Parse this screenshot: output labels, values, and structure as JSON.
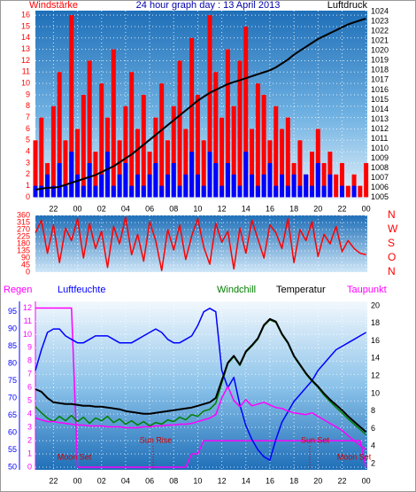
{
  "chart_data": [
    {
      "type": "combo",
      "title": "24 hour graph day : 13 April 2013",
      "y_label": "Windstärke",
      "y2_label": "Luftdruck",
      "grid": true,
      "x": [
        -3.5,
        -3,
        -2.5,
        -2,
        -1.5,
        -1,
        -0.5,
        0,
        0.5,
        1,
        1.5,
        2,
        2.5,
        3,
        3.5,
        4,
        4.5,
        5,
        5.5,
        6,
        6.5,
        7,
        7.5,
        8,
        8.5,
        9,
        9.5,
        10,
        10.5,
        11,
        11.5,
        12,
        12.5,
        13,
        13.5,
        14,
        14.5,
        15,
        15.5,
        16,
        16.5,
        17,
        17.5,
        18,
        18.5,
        19,
        19.5,
        20,
        20.5,
        21,
        21.5,
        22,
        22.5,
        23,
        23.5,
        24
      ],
      "xlim": [
        -3.5,
        24.1
      ],
      "xticks": [
        {
          "value": -2,
          "label": "22"
        },
        {
          "value": 0,
          "label": "00"
        },
        {
          "value": 2,
          "label": "02"
        },
        {
          "value": 4,
          "label": "04"
        },
        {
          "value": 6,
          "label": "06"
        },
        {
          "value": 8,
          "label": "08"
        },
        10,
        12,
        14,
        16,
        18,
        20,
        22,
        {
          "value": 24,
          "label": "00"
        }
      ],
      "ylim": [
        -0.2,
        16.4
      ],
      "yticks": [
        0,
        1,
        2,
        3,
        4,
        5,
        6,
        7,
        8,
        9,
        10,
        11,
        12,
        13,
        14,
        15,
        16
      ],
      "y2lim": [
        1004.8,
        1024.1
      ],
      "y2ticks": [
        1005,
        1006,
        1007,
        1008,
        1009,
        1010,
        1011,
        1012,
        1013,
        1014,
        1015,
        1016,
        1017,
        1018,
        1019,
        1020,
        1021,
        1022,
        1023,
        1024
      ],
      "series": [
        {
          "type": "bar",
          "color": "#ff0000",
          "values": [
            5,
            7,
            3,
            8,
            11,
            5,
            16,
            6,
            9,
            12,
            4,
            10,
            7,
            13,
            5,
            8,
            11,
            6,
            9,
            4,
            7,
            10,
            5,
            8,
            12,
            6,
            14,
            9,
            5,
            16,
            11,
            7,
            13,
            8,
            12,
            15,
            6,
            10,
            9,
            5,
            8,
            6,
            7,
            3,
            5,
            2,
            4,
            6,
            3,
            4,
            2,
            3,
            1,
            2,
            1,
            3
          ]
        },
        {
          "type": "bar",
          "color": "#0000ff",
          "values": [
            1,
            1,
            2,
            1,
            3,
            1,
            4,
            2,
            1,
            3,
            1,
            2,
            4,
            1,
            2,
            3,
            1,
            2,
            1,
            2,
            3,
            1,
            2,
            3,
            1,
            2,
            4,
            2,
            1,
            4,
            3,
            1,
            3,
            2,
            1,
            4,
            2,
            1,
            2,
            3,
            1,
            2,
            1,
            2,
            1,
            2,
            1,
            3,
            1,
            2,
            0,
            1,
            0,
            1,
            0,
            0
          ]
        },
        {
          "type": "line",
          "axis": "y2",
          "color": "#000000",
          "values": [
            1005.8,
            1005.9,
            1006,
            1006,
            1006.1,
            1006.3,
            1006.5,
            1006.7,
            1006.9,
            1007.1,
            1007.3,
            1007.6,
            1007.9,
            1008.2,
            1008.6,
            1009,
            1009.4,
            1009.9,
            1010.4,
            1010.9,
            1011.4,
            1011.9,
            1012.4,
            1012.9,
            1013.4,
            1013.9,
            1014.4,
            1014.9,
            1015.3,
            1015.7,
            1016,
            1016.3,
            1016.6,
            1016.8,
            1017,
            1017.2,
            1017.4,
            1017.6,
            1017.8,
            1018,
            1018.3,
            1018.7,
            1019.1,
            1019.6,
            1020,
            1020.4,
            1020.8,
            1021.2,
            1021.5,
            1021.8,
            1022.1,
            1022.4,
            1022.7,
            1022.9,
            1023.1,
            1023.3
          ]
        }
      ]
    },
    {
      "type": "combo",
      "grid": true,
      "x": [
        -3.5,
        -3,
        -2.5,
        -2,
        -1.5,
        -1,
        -0.5,
        0,
        0.5,
        1,
        1.5,
        2,
        2.5,
        3,
        3.5,
        4,
        4.5,
        5,
        5.5,
        6,
        6.5,
        7,
        7.5,
        8,
        8.5,
        9,
        9.5,
        10,
        10.5,
        11,
        11.5,
        12,
        12.5,
        13,
        13.5,
        14,
        14.5,
        15,
        15.5,
        16,
        16.5,
        17,
        17.5,
        18,
        18.5,
        19,
        19.5,
        20,
        20.5,
        21,
        21.5,
        22,
        22.5,
        23,
        23.5,
        24
      ],
      "xlim": [
        -3.5,
        24.1
      ],
      "xticks": [
        -2,
        0,
        2,
        4,
        6,
        8,
        10,
        12,
        14,
        16,
        18,
        20,
        22,
        24
      ],
      "ylim": [
        0,
        360
      ],
      "yticks": [
        0,
        45,
        90,
        135,
        180,
        225,
        270,
        315,
        360
      ],
      "y2lim": [
        0,
        360
      ],
      "y2ticks": [
        {
          "value": 0,
          "label": "N"
        },
        {
          "value": 90,
          "label": "O"
        },
        {
          "value": 180,
          "label": "S"
        },
        {
          "value": 270,
          "label": "W"
        },
        {
          "value": 360,
          "label": "N"
        }
      ],
      "series": [
        {
          "type": "line",
          "color": "#ff0000",
          "values": [
            250,
            330,
            120,
            300,
            60,
            280,
            200,
            340,
            90,
            310,
            150,
            260,
            30,
            290,
            180,
            350,
            110,
            240,
            70,
            320,
            200,
            10,
            270,
            140,
            300,
            80,
            230,
            340,
            160,
            50,
            310,
            190,
            260,
            20,
            280,
            120,
            330,
            210,
            90,
            300,
            250,
            150,
            340,
            60,
            270,
            200,
            320,
            100,
            240,
            180,
            290,
            130,
            200,
            150,
            120,
            110
          ]
        }
      ]
    },
    {
      "type": "combo",
      "grid": true,
      "x": [
        -3.5,
        -3,
        -2.5,
        -2,
        -1.5,
        -1,
        -0.5,
        0,
        0.5,
        1,
        1.5,
        2,
        2.5,
        3,
        3.5,
        4,
        4.5,
        5,
        5.5,
        6,
        6.5,
        7,
        7.5,
        8,
        8.5,
        9,
        9.5,
        10,
        10.5,
        11,
        11.5,
        12,
        12.5,
        13,
        13.5,
        14,
        14.5,
        15,
        15.5,
        16,
        16.5,
        17,
        17.5,
        18,
        18.5,
        19,
        19.5,
        20,
        20.5,
        21,
        21.5,
        22,
        22.5,
        23,
        23.5,
        24
      ],
      "xlim": [
        -3.5,
        24.1
      ],
      "xticks": [
        {
          "value": -2,
          "label": "22"
        },
        {
          "value": 0,
          "label": "00"
        },
        {
          "value": 2,
          "label": "02"
        },
        {
          "value": 4,
          "label": "04"
        },
        {
          "value": 6,
          "label": "06"
        },
        {
          "value": 8,
          "label": "08"
        },
        10,
        12,
        14,
        16,
        18,
        20,
        22,
        {
          "value": 24,
          "label": "00"
        }
      ],
      "ylim": [
        -0.2,
        12.5
      ],
      "yticks": [
        0,
        1,
        2,
        3,
        4,
        5,
        6,
        7,
        8,
        9,
        10,
        11,
        12
      ],
      "y2lim": [
        1.3,
        20.5
      ],
      "y2ticks": [
        2,
        4,
        6,
        8,
        10,
        12,
        14,
        16,
        18,
        20
      ],
      "y3lim": [
        49.2,
        98
      ],
      "y3ticks": [
        50,
        55,
        60,
        65,
        70,
        75,
        80,
        85,
        90,
        95
      ],
      "annotations": [
        "Moon Set",
        "Sun Rise",
        "Sun Set",
        "Moon Set"
      ],
      "series": [
        {
          "name": "Regen",
          "type": "line",
          "color": "#ff00ff",
          "values": [
            12,
            12,
            12,
            12,
            12,
            12,
            12,
            0,
            0,
            0,
            0,
            0,
            0,
            0,
            0,
            0,
            0,
            0,
            0,
            0,
            0,
            0,
            0,
            0,
            0,
            0,
            1,
            1,
            2,
            2,
            2,
            2,
            2,
            2,
            2,
            2,
            2,
            2,
            2,
            2,
            2,
            2,
            2,
            2,
            2,
            2,
            2,
            2,
            2,
            2,
            2,
            2,
            2,
            2,
            2,
            0
          ]
        },
        {
          "name": "Luftfeuchte",
          "type": "line",
          "axis": "y3",
          "color": "#0000ff",
          "values": [
            78,
            84,
            89,
            90,
            90,
            88,
            87,
            86,
            86,
            87,
            88,
            88,
            88,
            87,
            86,
            86,
            86,
            87,
            88,
            89,
            90,
            89,
            87,
            86,
            86,
            87,
            88,
            91,
            95,
            96,
            95,
            78,
            73,
            76,
            68,
            62,
            58,
            55,
            53,
            52,
            58,
            63,
            66,
            69,
            71,
            73,
            75,
            78,
            80,
            82,
            84,
            85,
            86,
            87,
            88,
            89
          ]
        },
        {
          "name": "Windchill",
          "type": "line",
          "axis": "y2",
          "color": "#008000",
          "values": [
            8.5,
            7.8,
            7.2,
            6.8,
            7.4,
            6.9,
            7.5,
            6.8,
            7.3,
            6.6,
            7.2,
            6.9,
            7.4,
            6.7,
            7.1,
            6.5,
            6.9,
            6.4,
            6.8,
            6.3,
            6.7,
            6.5,
            7,
            6.8,
            7.3,
            7,
            7.6,
            7.4,
            8,
            8.2,
            8.9,
            11.2,
            13.4,
            14.2,
            13.2,
            14.7,
            15.4,
            16.2,
            17.7,
            18.4,
            18.1,
            16.7,
            15.7,
            14.2,
            13.2,
            12.2,
            11.4,
            10.7,
            9.8,
            9.1,
            8.4,
            7.8,
            7.1,
            6.5,
            5.9,
            5.3
          ]
        },
        {
          "name": "Temperatur",
          "type": "line",
          "axis": "y2",
          "color": "#000000",
          "values": [
            10.5,
            10.2,
            9.5,
            9,
            8.9,
            8.8,
            8.8,
            8.7,
            8.6,
            8.6,
            8.5,
            8.5,
            8.4,
            8.3,
            8.2,
            8,
            7.9,
            7.8,
            7.7,
            7.7,
            7.8,
            7.9,
            8,
            8.1,
            8.2,
            8.3,
            8.4,
            8.6,
            8.8,
            9,
            9.5,
            11.5,
            13.5,
            14.3,
            13.3,
            14.8,
            15.5,
            16.3,
            17.8,
            18.5,
            18.2,
            16.8,
            15.8,
            14.3,
            13.3,
            12.3,
            11.5,
            10.8,
            10,
            9.3,
            8.7,
            8.1,
            7.4,
            6.8,
            6.2,
            5.6
          ]
        },
        {
          "name": "Taupunkt",
          "type": "line",
          "axis": "y2",
          "color": "#ff00ff",
          "values": [
            7.2,
            7,
            6.8,
            6.8,
            6.7,
            6.6,
            6.5,
            6.4,
            6.4,
            6.3,
            6.3,
            6.3,
            6.2,
            6.2,
            6.2,
            6.1,
            6.1,
            6.1,
            6.2,
            6.2,
            6.3,
            6.3,
            6.4,
            6.4,
            6.5,
            6.5,
            6.6,
            6.8,
            7,
            7.2,
            7.6,
            9.5,
            10.8,
            9.2,
            8.5,
            9.3,
            8.6,
            8.8,
            9,
            8.7,
            8.4,
            8.3,
            8,
            7.8,
            7.7,
            7.6,
            7.8,
            7.4,
            7,
            6.6,
            6.2,
            5.8,
            5.2,
            4.6,
            4.1,
            3.6
          ]
        }
      ]
    }
  ]
}
